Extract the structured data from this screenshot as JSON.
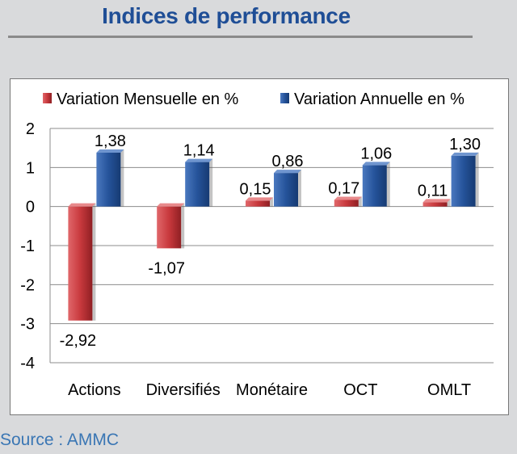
{
  "header": {
    "title": "Indices de performance"
  },
  "footer": {
    "source": "Source : AMMC"
  },
  "colors": {
    "monthly": "#c0393e",
    "annual": "#1f4e8f",
    "title": "#1f4e96",
    "source": "#3a76b4"
  },
  "chart_data": {
    "type": "bar",
    "categories": [
      "Actions",
      "Diversifiés",
      "Monétaire",
      "OCT",
      "OMLT"
    ],
    "series": [
      {
        "name": "Variation Mensuelle en %",
        "values": [
          -2.92,
          -1.07,
          0.15,
          0.17,
          0.11
        ],
        "labels": [
          "-2,92",
          "-1,07",
          "0,15",
          "0,17",
          "0,11"
        ]
      },
      {
        "name": "Variation Annuelle en %",
        "values": [
          1.38,
          1.14,
          0.86,
          1.06,
          1.3
        ],
        "labels": [
          "1,38",
          "1,14",
          "0,86",
          "1,06",
          "1,30"
        ]
      }
    ],
    "yticks": [
      2,
      1,
      0,
      -1,
      -2,
      -3,
      -4
    ],
    "ylim": [
      -4,
      2
    ],
    "grid": true,
    "legend": "top"
  }
}
